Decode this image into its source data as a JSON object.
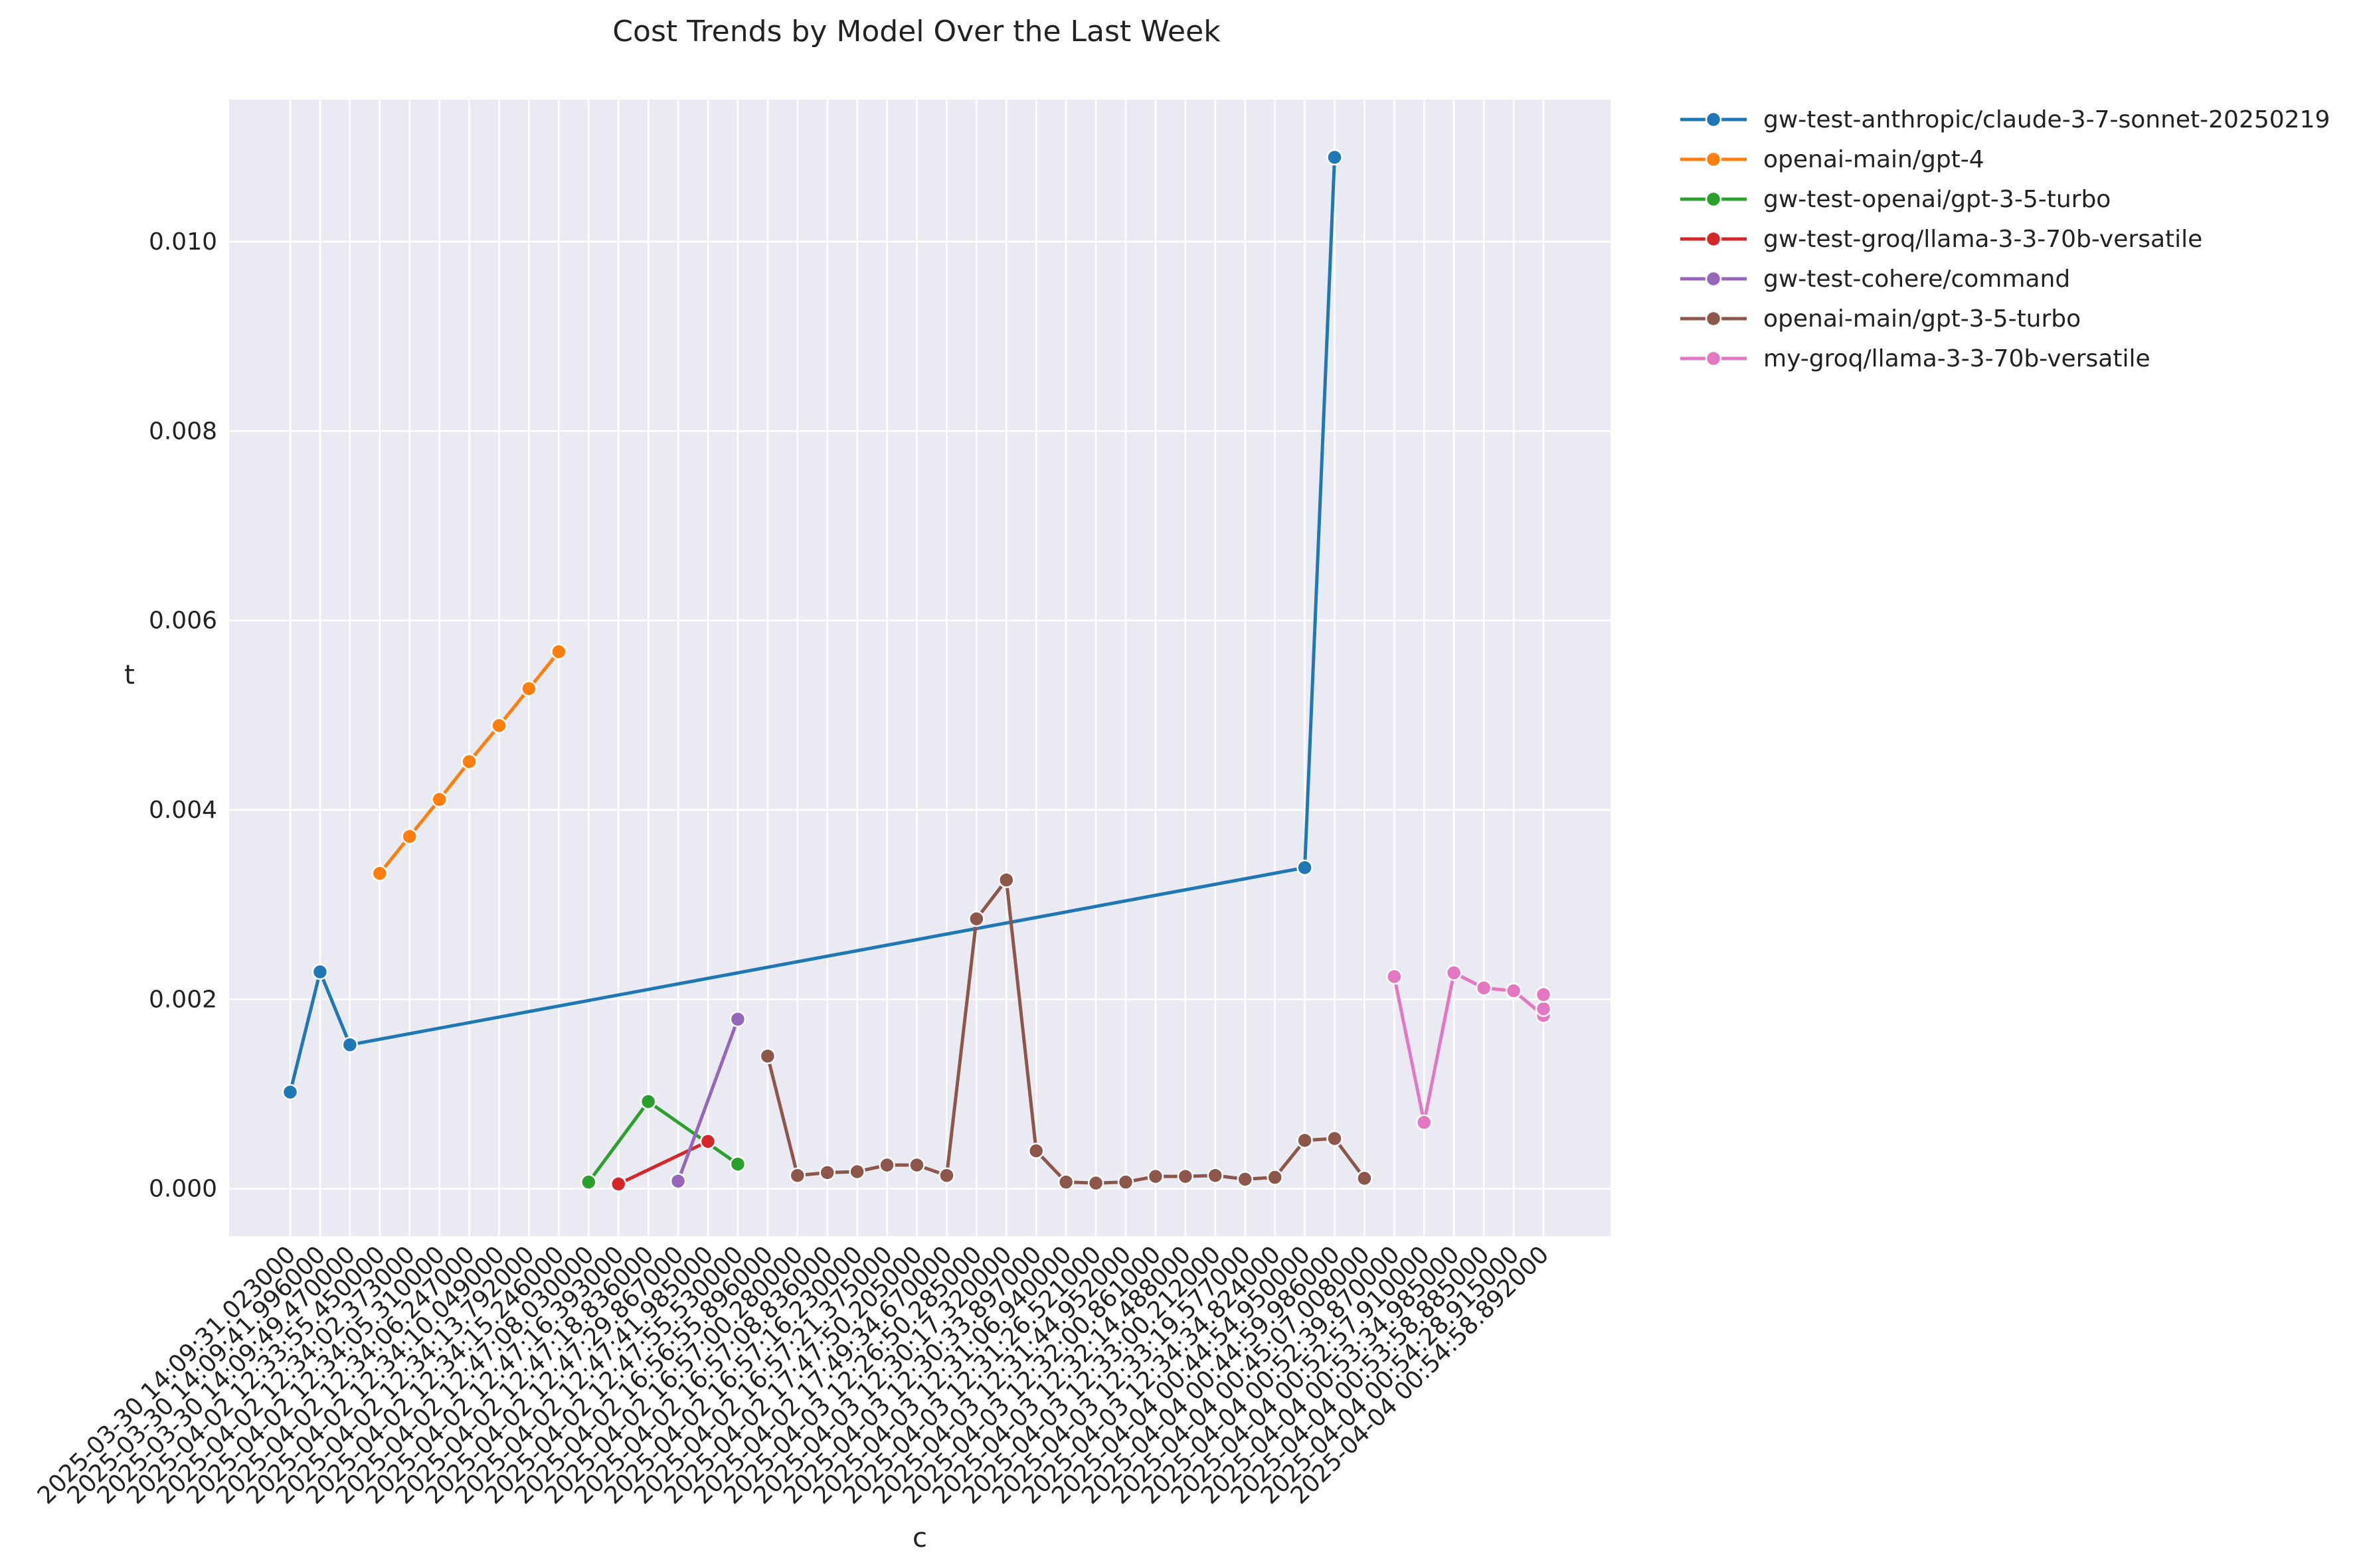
{
  "chart_data": {
    "type": "line",
    "title": "Cost Trends by Model Over the Last Week",
    "xlabel": "c",
    "ylabel": "t",
    "ylim": [
      -0.0005,
      0.0115
    ],
    "yticks": [
      "0.000",
      "0.002",
      "0.004",
      "0.006",
      "0.008",
      "0.010"
    ],
    "ytick_values": [
      0,
      0.002,
      0.004,
      0.006,
      0.008,
      0.01
    ],
    "grid": true,
    "legend_position": "outside-right-top",
    "categories": [
      "2025-03-30 14:09:31.023000",
      "2025-03-30 14:09:41.996000",
      "2025-03-30 14:09:49.470000",
      "2025-04-02 12:33:55.450000",
      "2025-04-02 12:34:02.373000",
      "2025-04-02 12:34:05.310000",
      "2025-04-02 12:34:06.247000",
      "2025-04-02 12:34:10.049000",
      "2025-04-02 12:34:13.792000",
      "2025-04-02 12:34:15.246000",
      "2025-04-02 12:47:08.030000",
      "2025-04-02 12:47:16.393000",
      "2025-04-02 12:47:18.836000",
      "2025-04-02 12:47:29.867000",
      "2025-04-02 12:47:41.985000",
      "2025-04-02 12:47:55.530000",
      "2025-04-02 16:56:55.896000",
      "2025-04-02 16:57:00.280000",
      "2025-04-02 16:57:08.836000",
      "2025-04-02 16:57:16.230000",
      "2025-04-02 16:57:21.375000",
      "2025-04-02 17:47:50.205000",
      "2025-04-02 17:49:34.670000",
      "2025-04-03 12:26:50.285000",
      "2025-04-03 12:30:17.320000",
      "2025-04-03 12:30:33.897000",
      "2025-04-03 12:31:06.940000",
      "2025-04-03 12:31:26.521000",
      "2025-04-03 12:31:44.952000",
      "2025-04-03 12:32:00.861000",
      "2025-04-03 12:32:14.488000",
      "2025-04-03 12:33:00.212000",
      "2025-04-03 12:33:19.577000",
      "2025-04-03 12:34:34.824000",
      "2025-04-04 00:44:54.950000",
      "2025-04-04 00:44:59.986000",
      "2025-04-04 00:45:07.008000",
      "2025-04-04 00:52:39.870000",
      "2025-04-04 00:52:57.910000",
      "2025-04-04 00:53:34.985000",
      "2025-04-04 00:53:58.885000",
      "2025-04-04 00:54:28.915000",
      "2025-04-04 00:54:58.892000"
    ],
    "series": [
      {
        "name": "gw-test-anthropic/claude-3-7-sonnet-20250219",
        "color": "#1f77b4",
        "points": [
          {
            "x": "2025-03-30 14:09:31.023000",
            "y": 0.00102
          },
          {
            "x": "2025-03-30 14:09:41.996000",
            "y": 0.00229
          },
          {
            "x": "2025-03-30 14:09:49.470000",
            "y": 0.00152
          },
          {
            "x": "2025-04-04 00:44:54.950000",
            "y": 0.00339
          },
          {
            "x": "2025-04-04 00:44:59.986000",
            "y": 0.01089
          }
        ]
      },
      {
        "name": "openai-main/gpt-4",
        "color": "#ff7f0e",
        "points": [
          {
            "x": "2025-04-02 12:33:55.450000",
            "y": 0.00333
          },
          {
            "x": "2025-04-02 12:34:02.373000",
            "y": 0.00372
          },
          {
            "x": "2025-04-02 12:34:05.310000",
            "y": 0.00411
          },
          {
            "x": "2025-04-02 12:34:06.247000",
            "y": 0.00451
          },
          {
            "x": "2025-04-02 12:34:10.049000",
            "y": 0.00489
          },
          {
            "x": "2025-04-02 12:34:13.792000",
            "y": 0.00528
          },
          {
            "x": "2025-04-02 12:34:15.246000",
            "y": 0.00567
          }
        ]
      },
      {
        "name": "gw-test-openai/gpt-3-5-turbo",
        "color": "#2ca02c",
        "points": [
          {
            "x": "2025-04-02 12:47:08.030000",
            "y": 7e-05
          },
          {
            "x": "2025-04-02 12:47:18.836000",
            "y": 0.00092
          },
          {
            "x": "2025-04-02 12:47:55.530000",
            "y": 0.00026
          }
        ]
      },
      {
        "name": "gw-test-groq/llama-3-3-70b-versatile",
        "color": "#d62728",
        "points": [
          {
            "x": "2025-04-02 12:47:16.393000",
            "y": 5e-05
          },
          {
            "x": "2025-04-02 12:47:41.985000",
            "y": 0.0005
          }
        ]
      },
      {
        "name": "gw-test-cohere/command",
        "color": "#9467bd",
        "points": [
          {
            "x": "2025-04-02 12:47:29.867000",
            "y": 8e-05
          },
          {
            "x": "2025-04-02 12:47:55.530000",
            "y": 0.00179
          }
        ]
      },
      {
        "name": "openai-main/gpt-3-5-turbo",
        "color": "#8c564b",
        "points": [
          {
            "x": "2025-04-02 16:56:55.896000",
            "y": 0.0014
          },
          {
            "x": "2025-04-02 16:57:00.280000",
            "y": 0.00014
          },
          {
            "x": "2025-04-02 16:57:08.836000",
            "y": 0.00017
          },
          {
            "x": "2025-04-02 16:57:16.230000",
            "y": 0.00018
          },
          {
            "x": "2025-04-02 16:57:21.375000",
            "y": 0.00025
          },
          {
            "x": "2025-04-02 17:47:50.205000",
            "y": 0.00025
          },
          {
            "x": "2025-04-02 17:49:34.670000",
            "y": 0.00014
          },
          {
            "x": "2025-04-03 12:26:50.285000",
            "y": 0.00285
          },
          {
            "x": "2025-04-03 12:30:17.320000",
            "y": 0.00326
          },
          {
            "x": "2025-04-03 12:30:33.897000",
            "y": 0.0004
          },
          {
            "x": "2025-04-03 12:31:06.940000",
            "y": 7e-05
          },
          {
            "x": "2025-04-03 12:31:26.521000",
            "y": 6e-05
          },
          {
            "x": "2025-04-03 12:31:44.952000",
            "y": 7e-05
          },
          {
            "x": "2025-04-03 12:32:00.861000",
            "y": 0.00013
          },
          {
            "x": "2025-04-03 12:32:14.488000",
            "y": 0.00013
          },
          {
            "x": "2025-04-03 12:33:00.212000",
            "y": 0.00014
          },
          {
            "x": "2025-04-03 12:33:19.577000",
            "y": 0.0001
          },
          {
            "x": "2025-04-03 12:34:34.824000",
            "y": 0.00012
          },
          {
            "x": "2025-04-04 00:44:54.950000",
            "y": 0.00051
          },
          {
            "x": "2025-04-04 00:44:59.986000",
            "y": 0.00053
          },
          {
            "x": "2025-04-04 00:45:07.008000",
            "y": 0.00011
          }
        ]
      },
      {
        "name": "my-groq/llama-3-3-70b-versatile",
        "color": "#e377c2",
        "points": [
          {
            "x": "2025-04-04 00:52:39.870000",
            "y": 0.00224
          },
          {
            "x": "2025-04-04 00:52:57.910000",
            "y": 0.0007
          },
          {
            "x": "2025-04-04 00:53:34.985000",
            "y": 0.00228
          },
          {
            "x": "2025-04-04 00:53:58.885000",
            "y": 0.00212
          },
          {
            "x": "2025-04-04 00:54:28.915000",
            "y": 0.00209
          },
          {
            "x": "2025-04-04 00:54:58.892000",
            "y": 0.00183
          },
          {
            "x": "2025-04-04 00:54:58.892000",
            "y": 0.0019
          },
          {
            "x": "2025-04-04 00:54:58.892000",
            "y": 0.00205
          }
        ]
      }
    ]
  }
}
